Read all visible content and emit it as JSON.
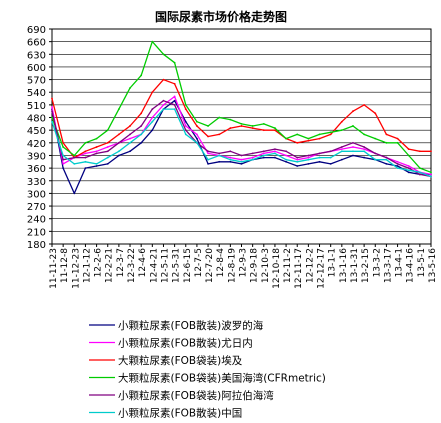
{
  "chart_data": {
    "type": "line",
    "title": "国际尿素市场价格走势图",
    "xlabel": "",
    "ylabel": "",
    "ylim": [
      180,
      690
    ],
    "yticks": [
      180,
      210,
      240,
      270,
      300,
      330,
      360,
      390,
      420,
      450,
      480,
      510,
      540,
      570,
      600,
      630,
      660,
      690
    ],
    "categories": [
      "11-11-23",
      "11-12-8",
      "11-12-23",
      "12-1-12",
      "12-2-6",
      "12-2-21",
      "12-3-7",
      "12-3-22",
      "12-4-6",
      "12-4-21",
      "12-5-11",
      "12-5-31",
      "12-6-15",
      "12-7-5",
      "12-7-20",
      "12-8-4",
      "12-8-19",
      "12-9-3",
      "12-9-18",
      "12-10-3",
      "12-10-18",
      "12-11-2",
      "12-11-17",
      "12-12-2",
      "12-12-17",
      "13-1-1",
      "13-1-16",
      "13-1-31",
      "13-2-15",
      "13-3-2",
      "13-3-17",
      "13-4-1",
      "13-4-16",
      "13-5-1",
      "13-5-16"
    ],
    "grid": true,
    "legend_position": "bottom",
    "series": [
      {
        "name": "小颗粒尿素(FOB散装)波罗的海",
        "color": "#000080",
        "values": [
          500,
          360,
          300,
          360,
          365,
          370,
          390,
          400,
          420,
          450,
          500,
          520,
          470,
          430,
          370,
          375,
          375,
          370,
          380,
          385,
          385,
          375,
          365,
          370,
          375,
          370,
          380,
          390,
          385,
          380,
          370,
          365,
          350,
          345,
          345
        ]
      },
      {
        "name": "小颗粒尿素(FOB散装)尤日内",
        "color": "#ff00ff",
        "values": [
          505,
          370,
          385,
          395,
          400,
          410,
          420,
          430,
          440,
          480,
          510,
          530,
          460,
          440,
          395,
          390,
          385,
          380,
          385,
          395,
          400,
          390,
          380,
          385,
          395,
          400,
          405,
          410,
          405,
          395,
          385,
          375,
          365,
          350,
          345
        ]
      },
      {
        "name": "大颗粒尿素(FOB袋装)埃及",
        "color": "#ff0000",
        "values": [
          525,
          420,
          385,
          400,
          410,
          420,
          440,
          460,
          490,
          540,
          570,
          560,
          500,
          460,
          435,
          440,
          455,
          460,
          455,
          450,
          450,
          430,
          420,
          425,
          430,
          440,
          470,
          495,
          510,
          490,
          440,
          430,
          405,
          400,
          400
        ]
      },
      {
        "name": "大颗粒尿素(FOB袋装)美国海湾(CFRmetric)",
        "color": "#00cc00",
        "values": [
          480,
          410,
          390,
          420,
          430,
          450,
          500,
          550,
          580,
          660,
          630,
          610,
          510,
          470,
          460,
          480,
          475,
          465,
          460,
          465,
          455,
          430,
          440,
          430,
          440,
          445,
          450,
          460,
          440,
          430,
          420,
          420,
          390,
          360,
          350
        ]
      },
      {
        "name": "小颗粒尿素(FOB袋装)阿拉伯海湾",
        "color": "#800080",
        "values": [
          495,
          380,
          385,
          385,
          395,
          400,
          420,
          440,
          460,
          500,
          520,
          510,
          450,
          420,
          400,
          395,
          400,
          390,
          395,
          400,
          405,
          400,
          385,
          390,
          395,
          400,
          410,
          420,
          410,
          395,
          385,
          370,
          360,
          345,
          340
        ]
      },
      {
        "name": "小颗粒尿素(FOB散装)中国",
        "color": "#00cccc",
        "values": [
          470,
          390,
          370,
          375,
          370,
          385,
          400,
          420,
          440,
          470,
          500,
          500,
          440,
          420,
          380,
          390,
          380,
          375,
          380,
          390,
          395,
          380,
          375,
          380,
          385,
          385,
          400,
          400,
          400,
          380,
          380,
          360,
          355,
          350,
          340
        ]
      }
    ]
  }
}
